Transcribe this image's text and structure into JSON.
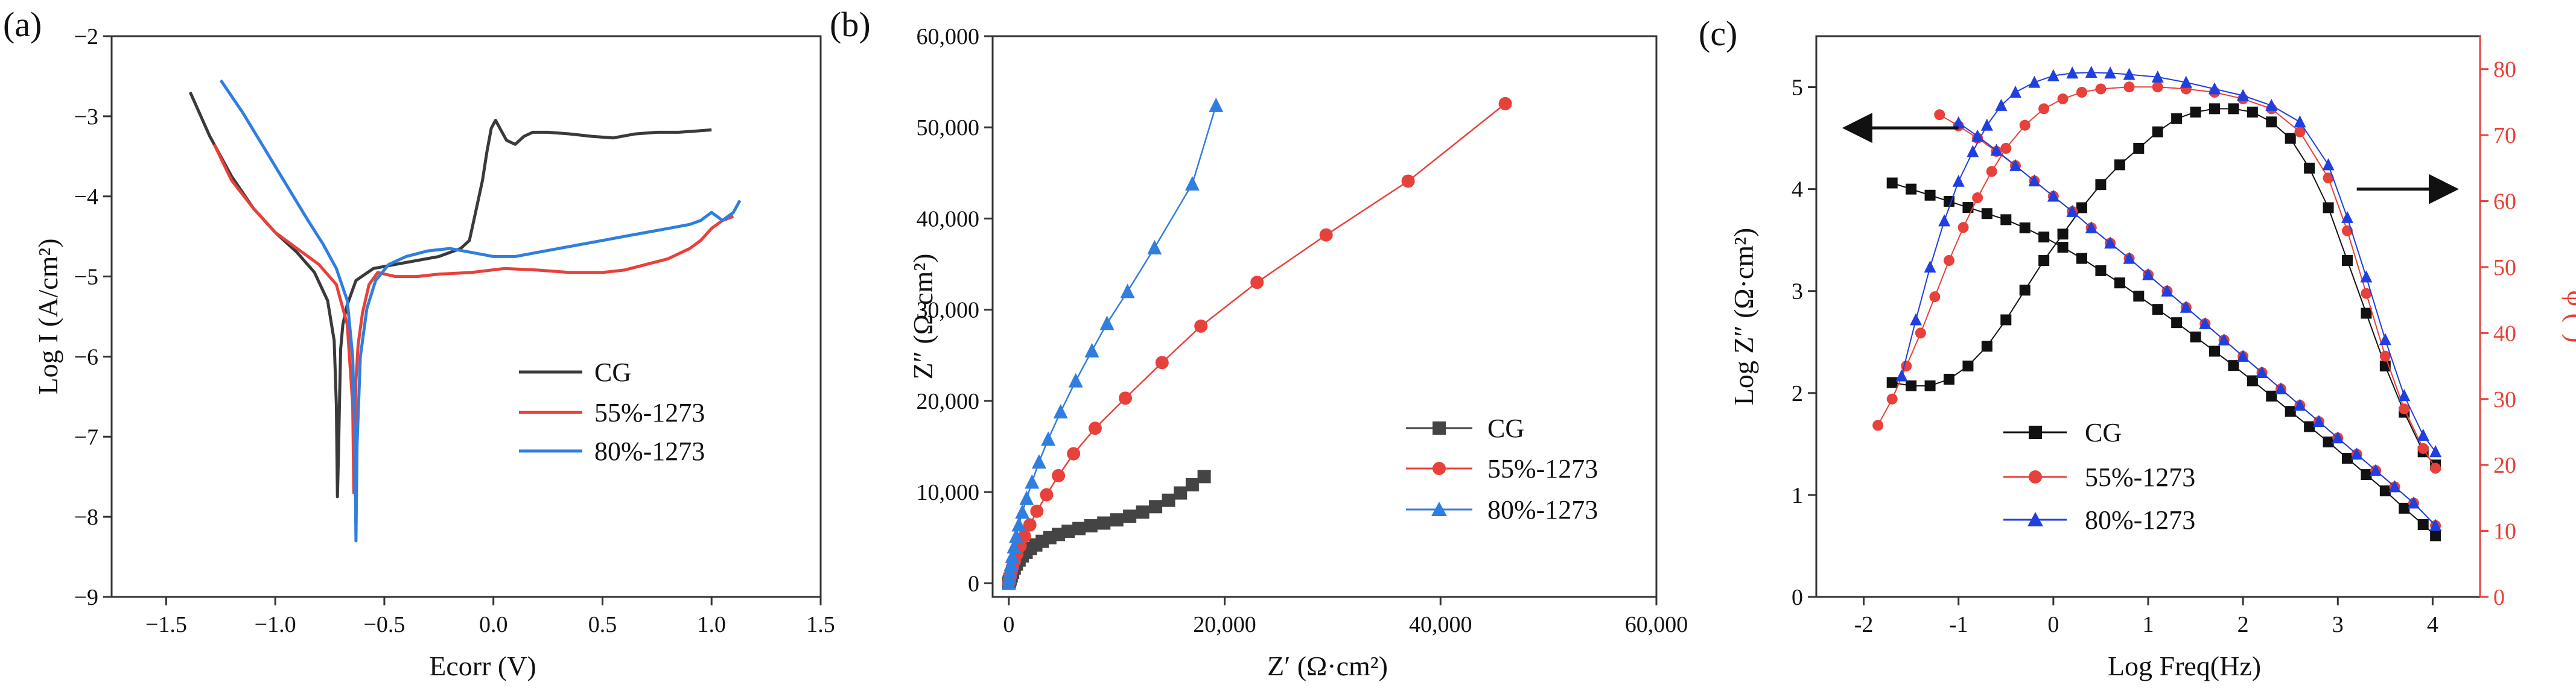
{
  "chart_data": [
    {
      "type": "line",
      "panel_label": "(a)",
      "xlabel": "Ecorr (V)",
      "ylabel": "Log I (A/cm²)",
      "xlim": [
        -1.75,
        1.5
      ],
      "ylim": [
        -9,
        -2
      ],
      "xticks": [
        -1.5,
        -1.0,
        -0.5,
        0.0,
        0.5,
        1.0,
        1.5
      ],
      "xtick_labels": [
        "−1.5",
        "−1.0",
        "−0.5",
        "0.0",
        "0.5",
        "1.0",
        "1.5"
      ],
      "yticks": [
        -9,
        -8,
        -7,
        -6,
        -5,
        -4,
        -3,
        -2
      ],
      "ytick_labels": [
        "−9",
        "−8",
        "−7",
        "−6",
        "−5",
        "−4",
        "−3",
        "−2"
      ],
      "legend_position": "lower-right",
      "series": [
        {
          "name": "CG",
          "color": "#3a3a3a",
          "x": [
            -1.39,
            -1.3,
            -1.2,
            -1.1,
            -1.0,
            -0.9,
            -0.82,
            -0.76,
            -0.73,
            -0.72,
            -0.715,
            -0.71,
            -0.705,
            -0.7,
            -0.69,
            -0.67,
            -0.63,
            -0.55,
            -0.45,
            -0.35,
            -0.25,
            -0.15,
            -0.11,
            -0.09,
            -0.07,
            -0.05,
            -0.03,
            -0.01,
            0.01,
            0.03,
            0.06,
            0.1,
            0.14,
            0.18,
            0.25,
            0.35,
            0.45,
            0.55,
            0.65,
            0.75,
            0.85,
            1.0
          ],
          "y": [
            -2.7,
            -3.25,
            -3.75,
            -4.15,
            -4.45,
            -4.7,
            -4.95,
            -5.3,
            -5.8,
            -6.6,
            -7.75,
            -7.2,
            -6.5,
            -5.9,
            -5.6,
            -5.35,
            -5.05,
            -4.9,
            -4.85,
            -4.8,
            -4.75,
            -4.65,
            -4.55,
            -4.3,
            -4.05,
            -3.8,
            -3.45,
            -3.15,
            -3.05,
            -3.15,
            -3.3,
            -3.35,
            -3.25,
            -3.2,
            -3.2,
            -3.22,
            -3.25,
            -3.27,
            -3.22,
            -3.2,
            -3.2,
            -3.17
          ]
        },
        {
          "name": "55%-1273",
          "color": "#e8403a",
          "x": [
            -1.28,
            -1.2,
            -1.1,
            -1.0,
            -0.9,
            -0.8,
            -0.72,
            -0.67,
            -0.645,
            -0.64,
            -0.635,
            -0.63,
            -0.62,
            -0.6,
            -0.57,
            -0.53,
            -0.45,
            -0.35,
            -0.25,
            -0.1,
            0.05,
            0.2,
            0.35,
            0.5,
            0.6,
            0.7,
            0.8,
            0.9,
            0.95,
            1.0,
            1.05,
            1.1
          ],
          "y": [
            -3.35,
            -3.8,
            -4.15,
            -4.45,
            -4.65,
            -4.85,
            -5.1,
            -5.6,
            -6.6,
            -7.7,
            -6.9,
            -6.3,
            -5.85,
            -5.45,
            -5.1,
            -4.95,
            -5.0,
            -5.0,
            -4.97,
            -4.95,
            -4.9,
            -4.92,
            -4.95,
            -4.95,
            -4.92,
            -4.85,
            -4.78,
            -4.65,
            -4.55,
            -4.4,
            -4.3,
            -4.25
          ]
        },
        {
          "name": "80%-1273",
          "color": "#2f7ee0",
          "x": [
            -1.25,
            -1.15,
            -1.05,
            -0.95,
            -0.85,
            -0.78,
            -0.72,
            -0.67,
            -0.645,
            -0.635,
            -0.63,
            -0.625,
            -0.61,
            -0.58,
            -0.54,
            -0.48,
            -0.4,
            -0.3,
            -0.2,
            -0.1,
            0.0,
            0.1,
            0.2,
            0.3,
            0.4,
            0.5,
            0.6,
            0.7,
            0.8,
            0.9,
            0.95,
            1.0,
            1.05,
            1.1,
            1.13
          ],
          "y": [
            -2.55,
            -2.95,
            -3.4,
            -3.85,
            -4.3,
            -4.6,
            -4.9,
            -5.3,
            -6.0,
            -7.0,
            -8.3,
            -7.1,
            -6.0,
            -5.4,
            -5.05,
            -4.85,
            -4.75,
            -4.68,
            -4.65,
            -4.7,
            -4.75,
            -4.75,
            -4.7,
            -4.65,
            -4.6,
            -4.55,
            -4.5,
            -4.45,
            -4.4,
            -4.35,
            -4.3,
            -4.2,
            -4.3,
            -4.2,
            -4.05
          ]
        }
      ]
    },
    {
      "type": "scatter",
      "panel_label": "(b)",
      "xlabel": "Z′ (Ω·cm²)",
      "ylabel": "Z″ (Ω·cm²)",
      "xlim": [
        -1500,
        60000
      ],
      "ylim": [
        -1500,
        60000
      ],
      "xticks": [
        0,
        20000,
        40000,
        60000
      ],
      "xtick_labels": [
        "0",
        "20,000",
        "40,000",
        "60,000"
      ],
      "yticks": [
        0,
        10000,
        20000,
        30000,
        40000,
        50000,
        60000
      ],
      "ytick_labels": [
        "0",
        "10,000",
        "20,000",
        "30,000",
        "40,000",
        "50,000",
        "60,000"
      ],
      "legend_position": "lower-right",
      "series": [
        {
          "name": "CG",
          "color": "#444444",
          "marker": "square",
          "x": [
            0,
            50,
            120,
            220,
            350,
            500,
            700,
            950,
            1250,
            1600,
            2000,
            2500,
            3100,
            3800,
            4600,
            5500,
            6500,
            7600,
            8800,
            10000,
            11200,
            12400,
            13600,
            14800,
            15900,
            17000,
            18100
          ],
          "y": [
            0,
            200,
            450,
            800,
            1200,
            1650,
            2100,
            2550,
            3000,
            3400,
            3800,
            4200,
            4600,
            5000,
            5350,
            5700,
            6000,
            6300,
            6600,
            6950,
            7350,
            7800,
            8400,
            9100,
            9900,
            10800,
            11700
          ]
        },
        {
          "name": "55%-1273",
          "color": "#e8403a",
          "marker": "circle",
          "x": [
            0,
            50,
            120,
            220,
            350,
            520,
            750,
            1050,
            1450,
            1950,
            2600,
            3500,
            4600,
            6000,
            8000,
            10800,
            14200,
            17800,
            23000,
            29400,
            37000,
            46000
          ],
          "y": [
            0,
            350,
            750,
            1250,
            1800,
            2450,
            3200,
            4100,
            5150,
            6400,
            7900,
            9700,
            11800,
            14200,
            17000,
            20300,
            24200,
            28200,
            33000,
            38200,
            44100,
            52600
          ]
        },
        {
          "name": "80%-1273",
          "color": "#2f7ee0",
          "marker": "triangle",
          "x": [
            0,
            50,
            110,
            200,
            320,
            480,
            680,
            930,
            1250,
            1650,
            2150,
            2800,
            3650,
            4800,
            6200,
            7700,
            9100,
            11000,
            13500,
            17000,
            19200
          ],
          "y": [
            0,
            600,
            1250,
            2050,
            2950,
            4000,
            5150,
            6400,
            7800,
            9300,
            11100,
            13300,
            15800,
            18800,
            22200,
            25500,
            28500,
            32000,
            36800,
            43800,
            52400
          ]
        }
      ]
    },
    {
      "type": "scatter",
      "panel_label": "(c)",
      "xlabel": "Log Freq(Hz)",
      "ylabel": "Log Z″ (Ω·cm²)",
      "y2label": "φ (°)",
      "xlim": [
        -2.5,
        4.5
      ],
      "ylim": [
        0,
        5.5
      ],
      "y2lim": [
        0,
        85
      ],
      "xticks": [
        -2,
        -1,
        0,
        1,
        2,
        3,
        4
      ],
      "xtick_labels": [
        "-2",
        "-1",
        "0",
        "1",
        "2",
        "3",
        "4"
      ],
      "yticks": [
        0,
        1,
        2,
        3,
        4,
        5
      ],
      "ytick_labels": [
        "0",
        "1",
        "2",
        "3",
        "4",
        "5"
      ],
      "y2ticks": [
        0,
        10,
        20,
        30,
        40,
        50,
        60,
        70,
        80
      ],
      "y2tick_labels": [
        "0",
        "10",
        "20",
        "30",
        "40",
        "50",
        "60",
        "70",
        "80"
      ],
      "legend_position": "lower-left",
      "annotations": {
        "left_arrow": {
          "x_from": -1.0,
          "x_to": -2.1,
          "y": 4.6
        },
        "right_arrow": {
          "x_from": 3.2,
          "x_to": 4.15,
          "y": 4.0
        }
      },
      "series": [
        {
          "name": "CG",
          "color": "#111111",
          "marker": "square",
          "magnitude": {
            "x": [
              -1.7,
              -1.5,
              -1.3,
              -1.1,
              -0.9,
              -0.7,
              -0.5,
              -0.3,
              -0.1,
              0.1,
              0.3,
              0.5,
              0.7,
              0.9,
              1.1,
              1.3,
              1.5,
              1.7,
              1.9,
              2.1,
              2.3,
              2.5,
              2.7,
              2.9,
              3.1,
              3.3,
              3.5,
              3.7,
              3.9,
              4.03
            ],
            "y": [
              4.06,
              4.0,
              3.94,
              3.88,
              3.82,
              3.76,
              3.7,
              3.62,
              3.53,
              3.43,
              3.32,
              3.2,
              3.08,
              2.95,
              2.82,
              2.69,
              2.55,
              2.41,
              2.27,
              2.12,
              1.97,
              1.82,
              1.67,
              1.52,
              1.36,
              1.2,
              1.04,
              0.87,
              0.71,
              0.6
            ]
          },
          "phase": {
            "x": [
              -1.7,
              -1.5,
              -1.3,
              -1.1,
              -0.9,
              -0.7,
              -0.5,
              -0.3,
              -0.1,
              0.1,
              0.3,
              0.5,
              0.7,
              0.9,
              1.1,
              1.3,
              1.5,
              1.7,
              1.9,
              2.1,
              2.3,
              2.5,
              2.7,
              2.9,
              3.1,
              3.3,
              3.5,
              3.7,
              3.9,
              4.03
            ],
            "y": [
              32.5,
              32.0,
              32.0,
              33.0,
              35.0,
              38.0,
              42.0,
              46.5,
              51.0,
              55.0,
              59.0,
              62.5,
              65.5,
              68.0,
              70.5,
              72.5,
              73.5,
              74.0,
              74.0,
              73.5,
              72.0,
              69.5,
              65.0,
              59.0,
              51.0,
              43.0,
              35.0,
              28.0,
              22.0,
              20.0
            ]
          }
        },
        {
          "name": "55%-1273",
          "color": "#e8403a",
          "marker": "circle",
          "magnitude": {
            "x": [
              -1.2,
              -1.0,
              -0.8,
              -0.6,
              -0.4,
              -0.2,
              0.0,
              0.2,
              0.4,
              0.6,
              0.8,
              1.0,
              1.2,
              1.4,
              1.6,
              1.8,
              2.0,
              2.2,
              2.4,
              2.6,
              2.8,
              3.0,
              3.2,
              3.4,
              3.6,
              3.8,
              4.03
            ],
            "y": [
              4.73,
              4.62,
              4.5,
              4.37,
              4.23,
              4.08,
              3.93,
              3.78,
              3.62,
              3.47,
              3.32,
              3.16,
              3.0,
              2.84,
              2.68,
              2.52,
              2.36,
              2.2,
              2.04,
              1.88,
              1.72,
              1.56,
              1.4,
              1.24,
              1.08,
              0.92,
              0.7
            ]
          },
          "phase": {
            "x": [
              -1.85,
              -1.7,
              -1.55,
              -1.4,
              -1.25,
              -1.1,
              -0.95,
              -0.8,
              -0.65,
              -0.5,
              -0.3,
              -0.1,
              0.1,
              0.3,
              0.5,
              0.8,
              1.1,
              1.4,
              1.7,
              2.0,
              2.3,
              2.6,
              2.9,
              3.1,
              3.3,
              3.5,
              3.7,
              3.9,
              4.03
            ],
            "y": [
              26.0,
              30.0,
              35.0,
              40.0,
              45.5,
              51.0,
              56.0,
              60.5,
              64.5,
              68.0,
              71.5,
              74.0,
              75.5,
              76.5,
              77.0,
              77.3,
              77.3,
              77.0,
              76.5,
              75.5,
              74.0,
              70.5,
              63.5,
              55.5,
              46.0,
              36.5,
              28.5,
              22.5,
              19.5
            ]
          }
        },
        {
          "name": "80%-1273",
          "color": "#1f3fe0",
          "marker": "triangle",
          "magnitude": {
            "x": [
              -1.0,
              -0.8,
              -0.6,
              -0.4,
              -0.2,
              0.0,
              0.2,
              0.4,
              0.6,
              0.8,
              1.0,
              1.2,
              1.4,
              1.6,
              1.8,
              2.0,
              2.2,
              2.4,
              2.6,
              2.8,
              3.0,
              3.2,
              3.4,
              3.6,
              3.8,
              4.03
            ],
            "y": [
              4.65,
              4.52,
              4.38,
              4.23,
              4.08,
              3.93,
              3.78,
              3.62,
              3.47,
              3.32,
              3.16,
              3.0,
              2.84,
              2.68,
              2.52,
              2.36,
              2.2,
              2.04,
              1.88,
              1.72,
              1.56,
              1.4,
              1.24,
              1.08,
              0.92,
              0.7
            ]
          },
          "phase": {
            "x": [
              -1.6,
              -1.45,
              -1.3,
              -1.15,
              -1.0,
              -0.85,
              -0.7,
              -0.55,
              -0.4,
              -0.2,
              0.0,
              0.2,
              0.4,
              0.6,
              0.8,
              1.1,
              1.4,
              1.7,
              2.0,
              2.3,
              2.6,
              2.9,
              3.1,
              3.3,
              3.5,
              3.7,
              3.9,
              4.03
            ],
            "y": [
              33.5,
              42.0,
              50.0,
              57.0,
              63.0,
              67.5,
              71.5,
              74.5,
              76.5,
              78.0,
              79.0,
              79.4,
              79.5,
              79.4,
              79.2,
              78.8,
              78.0,
              77.0,
              76.0,
              74.5,
              72.0,
              65.5,
              57.5,
              48.5,
              39.0,
              30.5,
              24.5,
              22.0
            ]
          }
        }
      ]
    }
  ]
}
